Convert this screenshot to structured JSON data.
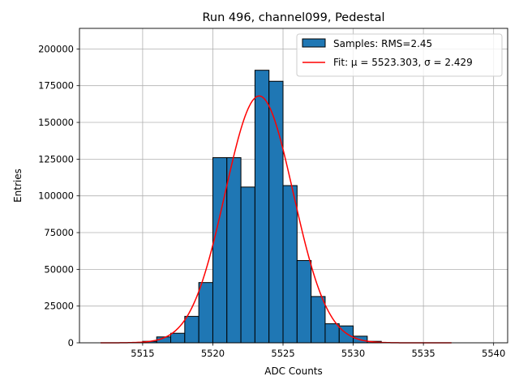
{
  "chart_data": {
    "type": "histogram",
    "title": "Run 496, channel099, Pedestal",
    "xlabel": "ADC Counts",
    "ylabel": "Entries",
    "xlim": [
      5510.5,
      5541.0
    ],
    "ylim": [
      0,
      214000
    ],
    "grid": true,
    "xticks": [
      5515,
      5520,
      5525,
      5530,
      5535,
      5540
    ],
    "yticks": [
      0,
      25000,
      50000,
      75000,
      100000,
      125000,
      150000,
      175000,
      200000
    ],
    "legend": {
      "location": "top-right",
      "entries": [
        {
          "label": "Samples: RMS=2.45",
          "kind": "patch",
          "color": "#1f77b4"
        },
        {
          "label": "Fit: μ = 5523.303, σ = 2.429",
          "kind": "line",
          "color": "#ff0000"
        }
      ]
    },
    "histogram": {
      "name": "Samples: RMS=2.45",
      "color": "#1f77b4",
      "edgecolor": "#000000",
      "bin_edges": [
        5515.0,
        5516.0,
        5517.0,
        5518.0,
        5519.0,
        5520.0,
        5521.0,
        5522.0,
        5523.0,
        5524.0,
        5525.0,
        5526.0,
        5527.0,
        5528.0,
        5529.0,
        5530.0,
        5531.0,
        5532.0
      ],
      "counts": [
        1000,
        4000,
        6500,
        18000,
        41000,
        126000,
        126000,
        106000,
        185500,
        178000,
        107000,
        56000,
        31500,
        13000,
        11500,
        4500,
        1000
      ]
    },
    "fit": {
      "name": "Fit",
      "type": "gaussian",
      "color": "#ff0000",
      "mu": 5523.303,
      "sigma": 2.429,
      "amplitude": 168000,
      "x_range": [
        5512.0,
        5537.0
      ]
    }
  }
}
